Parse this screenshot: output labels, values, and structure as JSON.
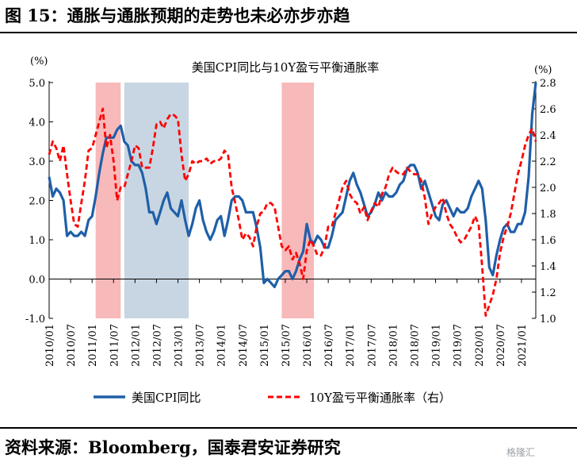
{
  "figure": {
    "title": "图 15：通胀与通胀预期的走势也未必亦步亦趋",
    "source": "资料来源：Bloomberg，国泰君安证券研究",
    "watermark": "格隆汇"
  },
  "chart_data": {
    "type": "line",
    "title": "美国CPI同比与10Y盈亏平衡通胀率",
    "left_axis": {
      "unit_label": "(%)",
      "range": [
        -1.0,
        5.0
      ],
      "ticks": [
        "-1.0",
        "0.0",
        "1.0",
        "2.0",
        "3.0",
        "4.0",
        "5.0"
      ]
    },
    "right_axis": {
      "unit_label": "(%)",
      "range": [
        1.0,
        2.8
      ],
      "ticks": [
        "1.0",
        "1.2",
        "1.4",
        "1.6",
        "1.8",
        "2.0",
        "2.2",
        "2.4",
        "2.6",
        "2.8"
      ]
    },
    "x_tick_labels": [
      "2010/01",
      "2010/07",
      "2011/01",
      "2011/07",
      "2012/01",
      "2012/07",
      "2013/01",
      "2013/07",
      "2014/01",
      "2014/07",
      "2015/01",
      "2015/07",
      "2016/01",
      "2016/07",
      "2017/01",
      "2017/07",
      "2018/01",
      "2018/07",
      "2019/01",
      "2019/07",
      "2020/01",
      "2020/07",
      "2021/01"
    ],
    "x_range": [
      "2010/01",
      "2021/05"
    ],
    "shaded_periods": [
      {
        "start": "2011/02",
        "end": "2011/09",
        "color": "#f7b9b9"
      },
      {
        "start": "2011/10",
        "end": "2013/04",
        "color": "#c8d6e3"
      },
      {
        "start": "2015/06",
        "end": "2016/03",
        "color": "#f7b9b9"
      }
    ],
    "series": [
      {
        "name": "美国CPI同比",
        "axis": "left",
        "color": "#1f5fa8",
        "dash": "solid",
        "values": [
          2.6,
          2.1,
          2.3,
          2.2,
          2.0,
          1.1,
          1.2,
          1.1,
          1.1,
          1.2,
          1.1,
          1.5,
          1.6,
          2.1,
          2.7,
          3.2,
          3.6,
          3.6,
          3.6,
          3.8,
          3.9,
          3.5,
          3.4,
          3.0,
          2.9,
          2.9,
          2.7,
          2.3,
          1.7,
          1.7,
          1.4,
          1.7,
          2.0,
          2.2,
          1.8,
          1.7,
          1.6,
          2.0,
          1.5,
          1.1,
          1.4,
          1.8,
          2.0,
          1.5,
          1.2,
          1.0,
          1.2,
          1.5,
          1.6,
          1.1,
          1.5,
          2.0,
          2.1,
          2.1,
          2.0,
          1.7,
          1.7,
          1.7,
          1.3,
          0.8,
          -0.1,
          0.0,
          -0.1,
          -0.2,
          0.0,
          0.1,
          0.2,
          0.2,
          0.0,
          0.2,
          0.5,
          0.7,
          1.4,
          1.0,
          0.9,
          1.1,
          1.0,
          0.8,
          0.8,
          1.1,
          1.5,
          1.6,
          1.7,
          2.1,
          2.5,
          2.7,
          2.4,
          2.2,
          1.9,
          1.6,
          1.7,
          1.9,
          2.2,
          2.0,
          2.2,
          2.1,
          2.1,
          2.2,
          2.4,
          2.5,
          2.8,
          2.9,
          2.9,
          2.7,
          2.3,
          2.5,
          2.2,
          1.9,
          1.6,
          1.5,
          1.9,
          2.0,
          1.8,
          1.6,
          1.8,
          1.7,
          1.7,
          1.8,
          2.1,
          2.3,
          2.5,
          2.3,
          1.5,
          0.3,
          0.1,
          0.6,
          1.0,
          1.3,
          1.4,
          1.2,
          1.2,
          1.4,
          1.4,
          1.7,
          2.6,
          4.2,
          5.0
        ]
      },
      {
        "name": "10Y盈亏平衡通胀率（右）",
        "axis": "right",
        "color": "#ff0000",
        "dash": "dashed",
        "values": [
          2.25,
          2.35,
          2.3,
          2.2,
          2.32,
          2.1,
          1.9,
          1.72,
          1.7,
          1.88,
          2.05,
          2.28,
          2.3,
          2.4,
          2.5,
          2.6,
          2.3,
          2.4,
          2.2,
          1.9,
          2.0,
          2.0,
          2.1,
          2.2,
          2.32,
          2.3,
          2.15,
          2.15,
          2.15,
          2.3,
          2.48,
          2.5,
          2.45,
          2.52,
          2.56,
          2.55,
          2.52,
          2.25,
          2.05,
          2.1,
          2.2,
          2.18,
          2.2,
          2.2,
          2.22,
          2.18,
          2.2,
          2.2,
          2.22,
          2.28,
          2.25,
          2.0,
          1.88,
          1.75,
          1.6,
          1.65,
          1.62,
          1.55,
          1.7,
          1.8,
          1.82,
          1.88,
          1.88,
          1.85,
          1.7,
          1.55,
          1.52,
          1.55,
          1.45,
          1.5,
          1.42,
          1.3,
          1.52,
          1.6,
          1.55,
          1.48,
          1.48,
          1.55,
          1.7,
          1.7,
          1.8,
          1.9,
          2.0,
          2.05,
          1.95,
          1.9,
          1.88,
          1.8,
          1.85,
          1.75,
          1.82,
          1.88,
          1.85,
          1.95,
          2.0,
          2.1,
          2.15,
          2.12,
          2.1,
          2.1,
          2.15,
          2.12,
          2.1,
          2.1,
          2.05,
          1.92,
          1.72,
          1.8,
          1.85,
          1.88,
          1.92,
          1.8,
          1.72,
          1.68,
          1.62,
          1.58,
          1.6,
          1.65,
          1.7,
          1.78,
          1.72,
          1.4,
          1.02,
          1.1,
          1.18,
          1.3,
          1.5,
          1.62,
          1.7,
          1.8,
          1.95,
          2.1,
          2.2,
          2.32,
          2.4,
          2.45,
          2.35
        ]
      }
    ],
    "legend": {
      "position": "bottom",
      "entries": [
        "美国CPI同比",
        "10Y盈亏平衡通胀率（右）"
      ]
    },
    "grid": false
  }
}
